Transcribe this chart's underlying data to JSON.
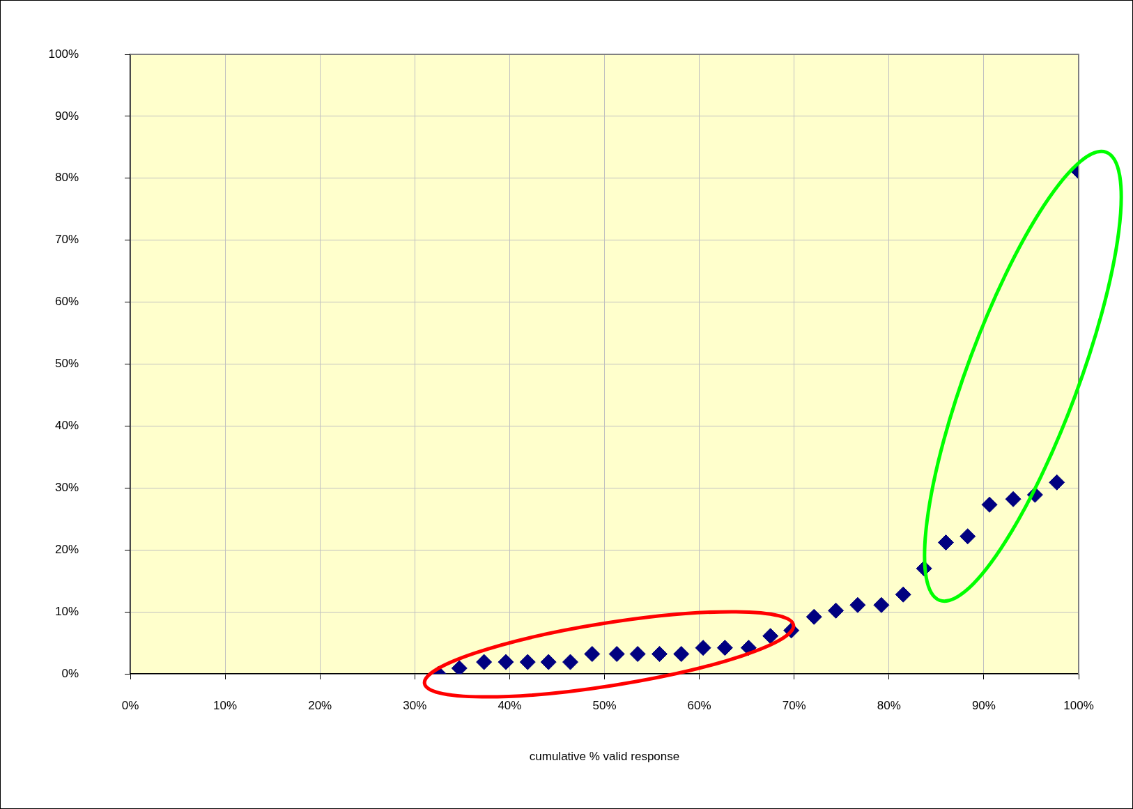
{
  "chart_data": {
    "type": "scatter",
    "xlabel": "cumulative % valid response",
    "x": [
      32.5,
      34.7,
      37.3,
      39.6,
      41.9,
      44.1,
      46.4,
      48.7,
      51.3,
      53.5,
      55.8,
      58.1,
      60.4,
      62.7,
      65.2,
      67.5,
      69.7,
      72.1,
      74.4,
      76.7,
      79.2,
      81.5,
      83.7,
      86.0,
      88.3,
      90.6,
      93.1,
      95.4,
      97.7,
      100
    ],
    "values": [
      0,
      0.9,
      1.9,
      1.9,
      1.9,
      1.9,
      1.9,
      3.2,
      3.2,
      3.2,
      3.2,
      3.2,
      4.2,
      4.2,
      4.2,
      6.1,
      7.0,
      9.2,
      10.2,
      11.1,
      11.1,
      12.8,
      17.0,
      21.2,
      22.2,
      27.3,
      28.2,
      28.9,
      30.9,
      81.1
    ],
    "color": "#000080",
    "marker": "diamond",
    "grid": true,
    "legend": false,
    "xlim": [
      0,
      100
    ],
    "ylim": [
      0,
      100
    ],
    "xticks": [
      {
        "value": 0,
        "label": "0%"
      },
      {
        "value": 10,
        "label": "10%"
      },
      {
        "value": 20,
        "label": "20%"
      },
      {
        "value": 30,
        "label": "30%"
      },
      {
        "value": 40,
        "label": "40%"
      },
      {
        "value": 50,
        "label": "50%"
      },
      {
        "value": 60,
        "label": "60%"
      },
      {
        "value": 70,
        "label": "70%"
      },
      {
        "value": 80,
        "label": "80%"
      },
      {
        "value": 90,
        "label": "90%"
      },
      {
        "value": 100,
        "label": "100%"
      }
    ],
    "yticks": [
      {
        "value": 0,
        "label": "0%"
      },
      {
        "value": 10,
        "label": "10%"
      },
      {
        "value": 20,
        "label": "20%"
      },
      {
        "value": 30,
        "label": "30%"
      },
      {
        "value": 40,
        "label": "40%"
      },
      {
        "value": 50,
        "label": "50%"
      },
      {
        "value": 60,
        "label": "60%"
      },
      {
        "value": 70,
        "label": "70%"
      },
      {
        "value": 80,
        "label": "80%"
      },
      {
        "value": 90,
        "label": "90%"
      },
      {
        "value": 100,
        "label": "100%"
      }
    ]
  }
}
